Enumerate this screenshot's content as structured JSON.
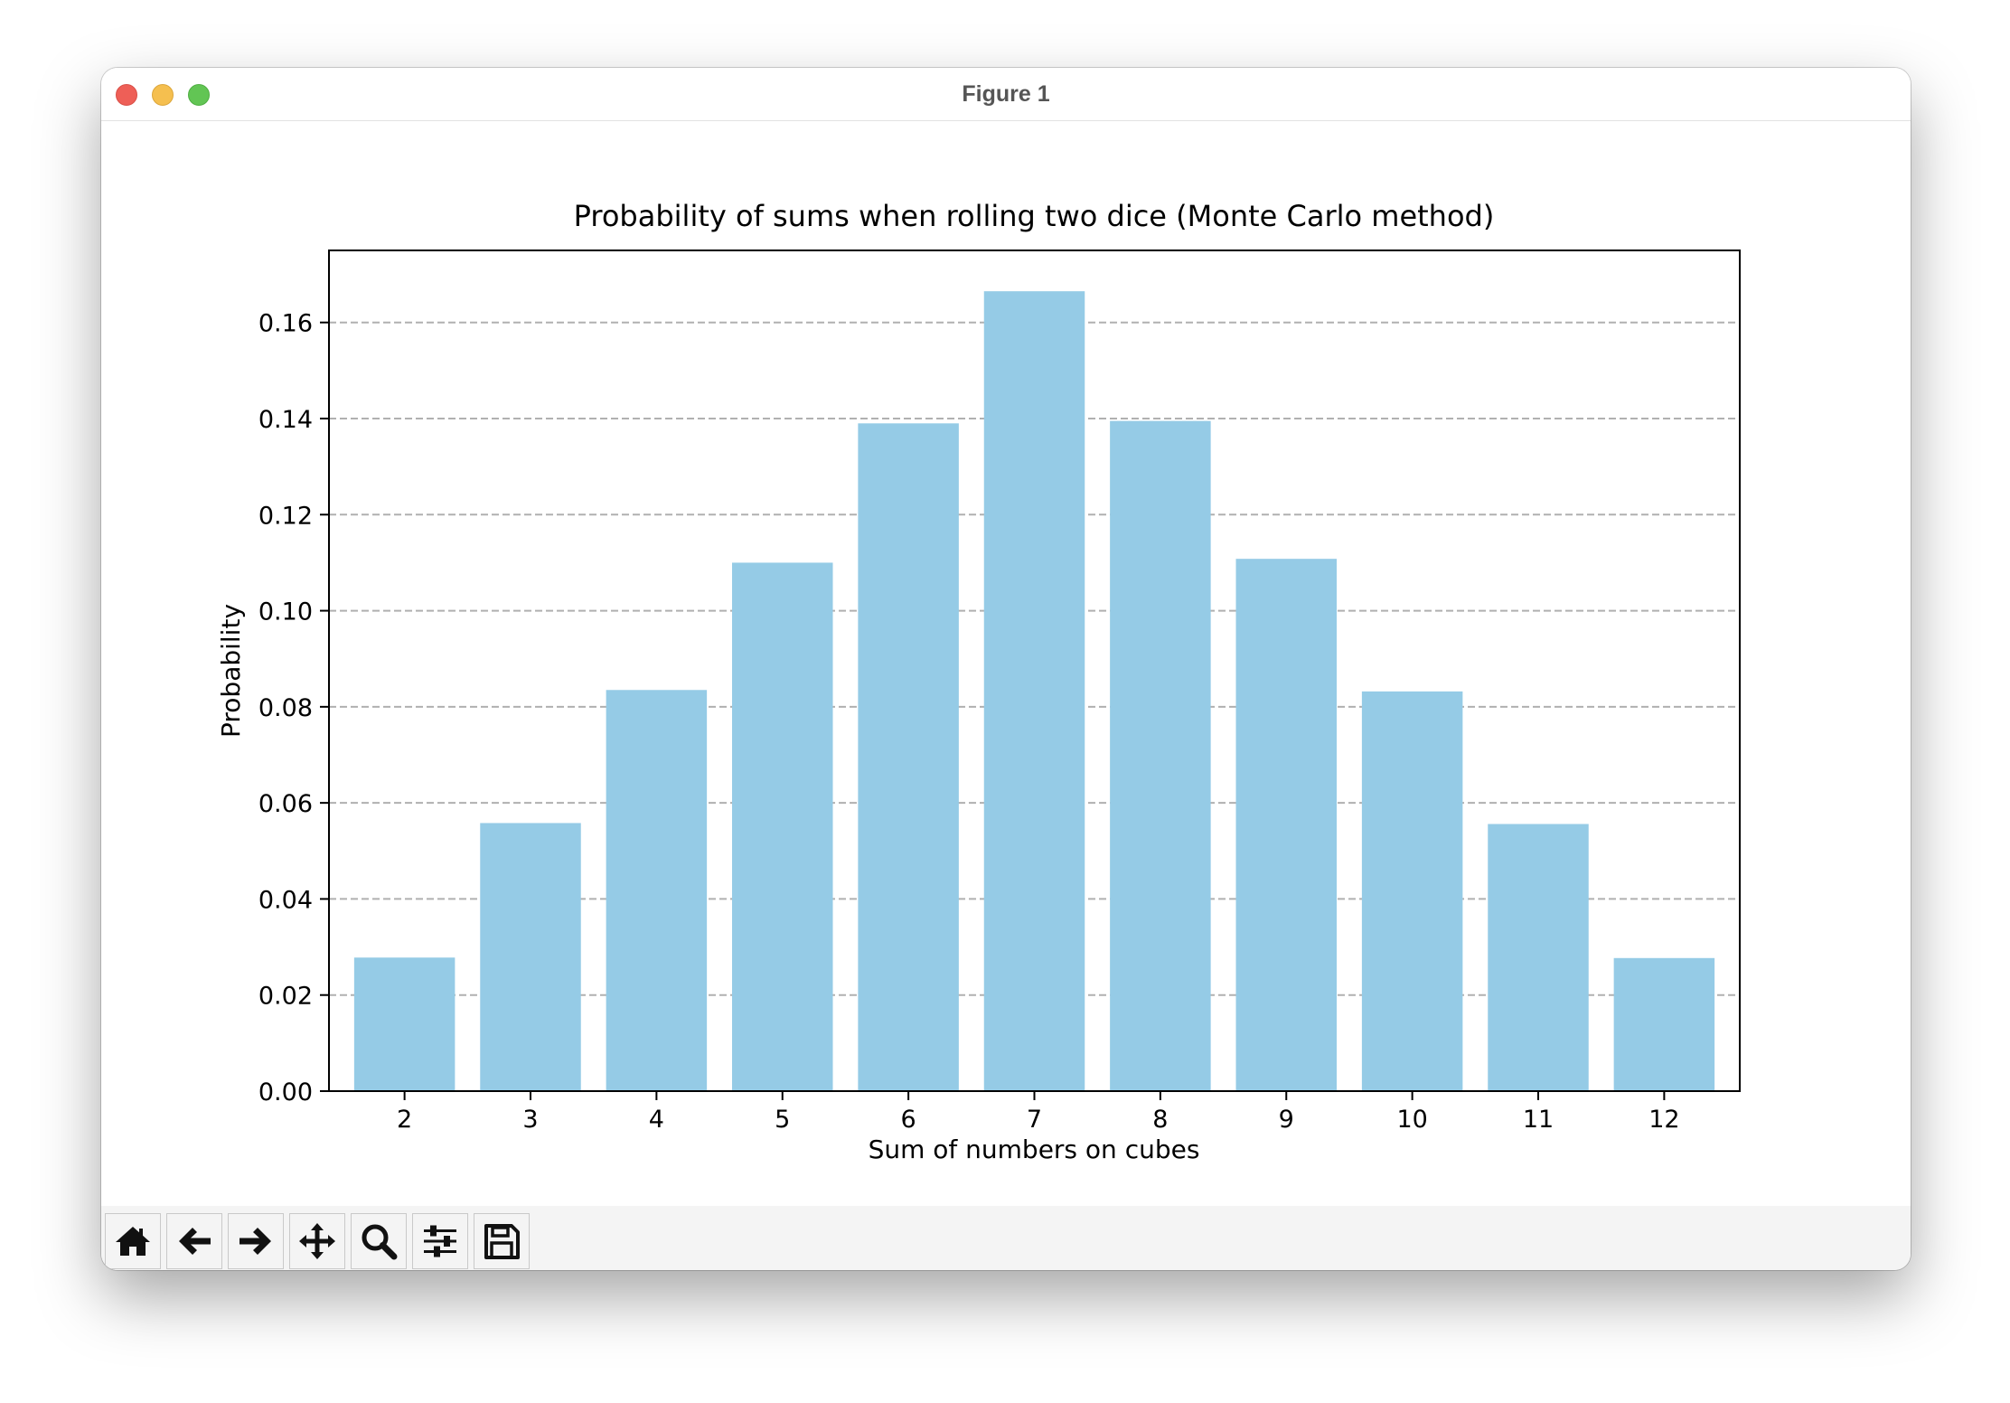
{
  "window": {
    "title": "Figure 1"
  },
  "toolbar": {
    "buttons": [
      {
        "name": "home-icon",
        "label": "Home"
      },
      {
        "name": "back-icon",
        "label": "Back"
      },
      {
        "name": "forward-icon",
        "label": "Forward"
      },
      {
        "name": "pan-icon",
        "label": "Pan"
      },
      {
        "name": "zoom-icon",
        "label": "Zoom"
      },
      {
        "name": "configure-subplots-icon",
        "label": "Configure subplots"
      },
      {
        "name": "save-icon",
        "label": "Save"
      }
    ]
  },
  "chart_data": {
    "type": "bar",
    "title": "Probability of sums when rolling two dice (Monte Carlo method)",
    "xlabel": "Sum of numbers on cubes",
    "ylabel": "Probability",
    "categories": [
      "2",
      "3",
      "4",
      "5",
      "6",
      "7",
      "8",
      "9",
      "10",
      "11",
      "12"
    ],
    "values": [
      0.0278,
      0.0558,
      0.0835,
      0.11,
      0.139,
      0.1665,
      0.1395,
      0.1108,
      0.0832,
      0.0556,
      0.0277
    ],
    "ylim": [
      0,
      0.175
    ],
    "yticks": [
      "0.00",
      "0.02",
      "0.04",
      "0.06",
      "0.08",
      "0.10",
      "0.12",
      "0.14",
      "0.16"
    ],
    "bar_color": "#95cbe6",
    "grid": "y-dashed",
    "legend": "none"
  }
}
